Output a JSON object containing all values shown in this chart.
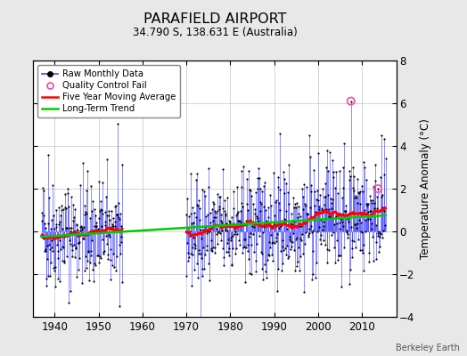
{
  "title": "PARAFIELD AIRPORT",
  "subtitle": "34.790 S, 138.631 E (Australia)",
  "ylabel": "Temperature Anomaly (°C)",
  "credit": "Berkeley Earth",
  "xlim": [
    1935,
    2018
  ],
  "ylim": [
    -4,
    8
  ],
  "yticks": [
    -4,
    -2,
    0,
    2,
    4,
    6,
    8
  ],
  "xticks": [
    1940,
    1950,
    1960,
    1970,
    1980,
    1990,
    2000,
    2010
  ],
  "gap_start": 1956,
  "gap_end": 1970,
  "raw_color": "#4444FF",
  "avg_color": "#FF0000",
  "trend_color": "#00CC00",
  "qc_color": "#FF44AA",
  "plot_bg": "#FFFFFF",
  "fig_bg": "#E8E8E8",
  "right_bg": "#D8D8D8",
  "seed": 42
}
